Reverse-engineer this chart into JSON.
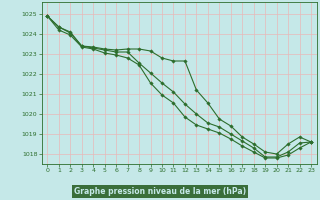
{
  "xlabel": "Graphe pression niveau de la mer (hPa)",
  "bg_color": "#c5e8e8",
  "grid_color": "#e8b8b8",
  "line_color": "#2d6e2d",
  "text_color": "#2d6e2d",
  "xlabel_bg": "#3a6e3a",
  "xlabel_text_color": "#c5e8e8",
  "xlim": [
    -0.5,
    23.5
  ],
  "ylim": [
    1017.5,
    1025.6
  ],
  "yticks": [
    1018,
    1019,
    1020,
    1021,
    1022,
    1023,
    1024,
    1025
  ],
  "xticks": [
    0,
    1,
    2,
    3,
    4,
    5,
    6,
    7,
    8,
    9,
    10,
    11,
    12,
    13,
    14,
    15,
    16,
    17,
    18,
    19,
    20,
    21,
    22,
    23
  ],
  "series": [
    [
      1024.9,
      1024.35,
      1024.1,
      1023.4,
      1023.35,
      1023.25,
      1023.2,
      1023.25,
      1023.25,
      1023.15,
      1022.8,
      1022.65,
      1022.65,
      1021.2,
      1020.55,
      1019.75,
      1019.4,
      1018.85,
      1018.5,
      1018.1,
      1018.0,
      1018.5,
      1018.85,
      1018.6
    ],
    [
      1024.9,
      1024.35,
      1024.05,
      1023.4,
      1023.3,
      1023.2,
      1023.1,
      1023.1,
      1022.55,
      1022.05,
      1021.55,
      1021.1,
      1020.5,
      1020.0,
      1019.55,
      1019.35,
      1019.0,
      1018.65,
      1018.3,
      1017.85,
      1017.85,
      1018.1,
      1018.55,
      1018.6
    ],
    [
      1024.9,
      1024.2,
      1023.95,
      1023.35,
      1023.25,
      1023.05,
      1022.95,
      1022.8,
      1022.45,
      1021.55,
      1020.95,
      1020.55,
      1019.85,
      1019.45,
      1019.25,
      1019.05,
      1018.75,
      1018.4,
      1018.1,
      1017.8,
      1017.8,
      1017.95,
      1018.3,
      1018.6
    ]
  ]
}
